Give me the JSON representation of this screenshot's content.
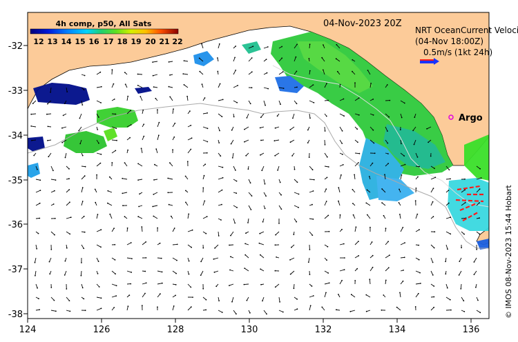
{
  "legend": {
    "title": "4h comp, p50, All Sats",
    "ticks": [
      "12",
      "13",
      "14",
      "15",
      "16",
      "17",
      "18",
      "19",
      "20",
      "21",
      "22"
    ]
  },
  "timestamp": "04-Nov-2023 20Z",
  "velocity": {
    "line1": "NRT OceanCurrent Velocity",
    "line2": "(04-Nov 18:00Z)",
    "line3": "0.5m/s (1kt 24h)"
  },
  "marker": {
    "label": "Argo",
    "color": "#e000e0"
  },
  "axes": {
    "lon_labels": [
      "124",
      "126",
      "128",
      "130",
      "132",
      "134",
      "136"
    ],
    "lat_labels": [
      "-32",
      "-33",
      "-34",
      "-35",
      "-36",
      "-37",
      "-38"
    ]
  },
  "credit": "© IMOS 08-Nov-2023 15:44 Hobart",
  "colors": {
    "land": "#fccb99",
    "ocean": "#ffffff",
    "arrow_red": "#ff1a1a",
    "vector_blue": "#1a33ff"
  }
}
